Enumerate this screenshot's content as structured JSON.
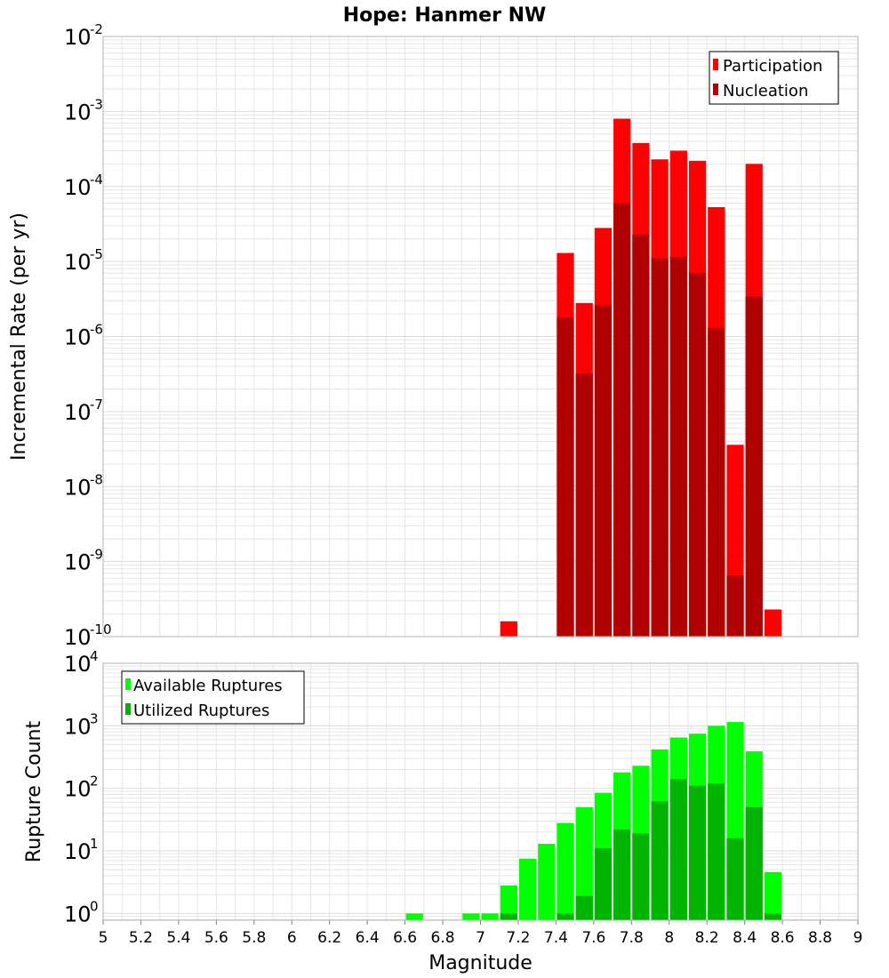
{
  "title": "Hope: Hanmer NW",
  "colors": {
    "participation": "#ff0000",
    "nucleation": "#b00000",
    "available": "#00ff00",
    "utilized": "#00b400",
    "grid": "#e6e6e6",
    "frame": "#b4b4b4"
  },
  "chart_data": [
    {
      "type": "bar",
      "ylabel": "Incremental Rate (per yr)",
      "xlabel": "",
      "yscale": "log",
      "ylim": [
        1e-10,
        0.01
      ],
      "xlim": [
        5,
        9
      ],
      "ytick_exponents": [
        -2,
        -3,
        -4,
        -5,
        -6,
        -7,
        -8,
        -9,
        -10
      ],
      "legend": {
        "position": "top-right",
        "entries": [
          "Participation",
          "Nucleation"
        ]
      },
      "x": [
        7.15,
        7.45,
        7.55,
        7.65,
        7.75,
        7.85,
        7.95,
        8.05,
        8.15,
        8.25,
        8.35,
        8.45,
        8.55
      ],
      "series": [
        {
          "name": "Participation",
          "values": [
            1.6e-10,
            1.3e-05,
            2.8e-06,
            2.8e-05,
            0.0008,
            0.00038,
            0.00023,
            0.0003,
            0.00022,
            5.3e-05,
            3.6e-08,
            0.0002,
            2.3e-10
          ]
        },
        {
          "name": "Nucleation",
          "values": [
            null,
            1.8e-06,
            3.2e-07,
            2.6e-06,
            6e-05,
            2.3e-05,
            1.1e-05,
            1.15e-05,
            7e-06,
            1.3e-06,
            6.5e-10,
            3.4e-06,
            null
          ]
        }
      ]
    },
    {
      "type": "bar",
      "ylabel": "Rupture Count",
      "xlabel": "Magnitude",
      "yscale": "log",
      "ylim": [
        0.78,
        10000
      ],
      "xlim": [
        5,
        9
      ],
      "ytick_exponents": [
        4,
        3,
        2,
        1,
        0
      ],
      "xticks": [
        "5",
        "5.2",
        "5.4",
        "5.6",
        "5.8",
        "6",
        "6.2",
        "6.4",
        "6.6",
        "6.8",
        "7",
        "7.2",
        "7.4",
        "7.6",
        "7.8",
        "8",
        "8.2",
        "8.4",
        "8.6",
        "8.8",
        "9"
      ],
      "legend": {
        "position": "top-left",
        "entries": [
          "Available Ruptures",
          "Utilized Ruptures"
        ]
      },
      "x": [
        6.65,
        6.95,
        7.05,
        7.15,
        7.25,
        7.35,
        7.45,
        7.55,
        7.65,
        7.75,
        7.85,
        7.95,
        8.05,
        8.15,
        8.25,
        8.35,
        8.45,
        8.55
      ],
      "series": [
        {
          "name": "Available Ruptures",
          "values": [
            1,
            1,
            1,
            2.8,
            7.5,
            13,
            28,
            50,
            85,
            180,
            230,
            420,
            650,
            750,
            1000,
            1150,
            390,
            4.6
          ]
        },
        {
          "name": "Utilized Ruptures",
          "values": [
            null,
            null,
            null,
            1,
            null,
            null,
            1,
            1.9,
            11,
            22,
            19,
            62,
            140,
            110,
            120,
            16,
            50,
            1
          ]
        }
      ]
    }
  ]
}
